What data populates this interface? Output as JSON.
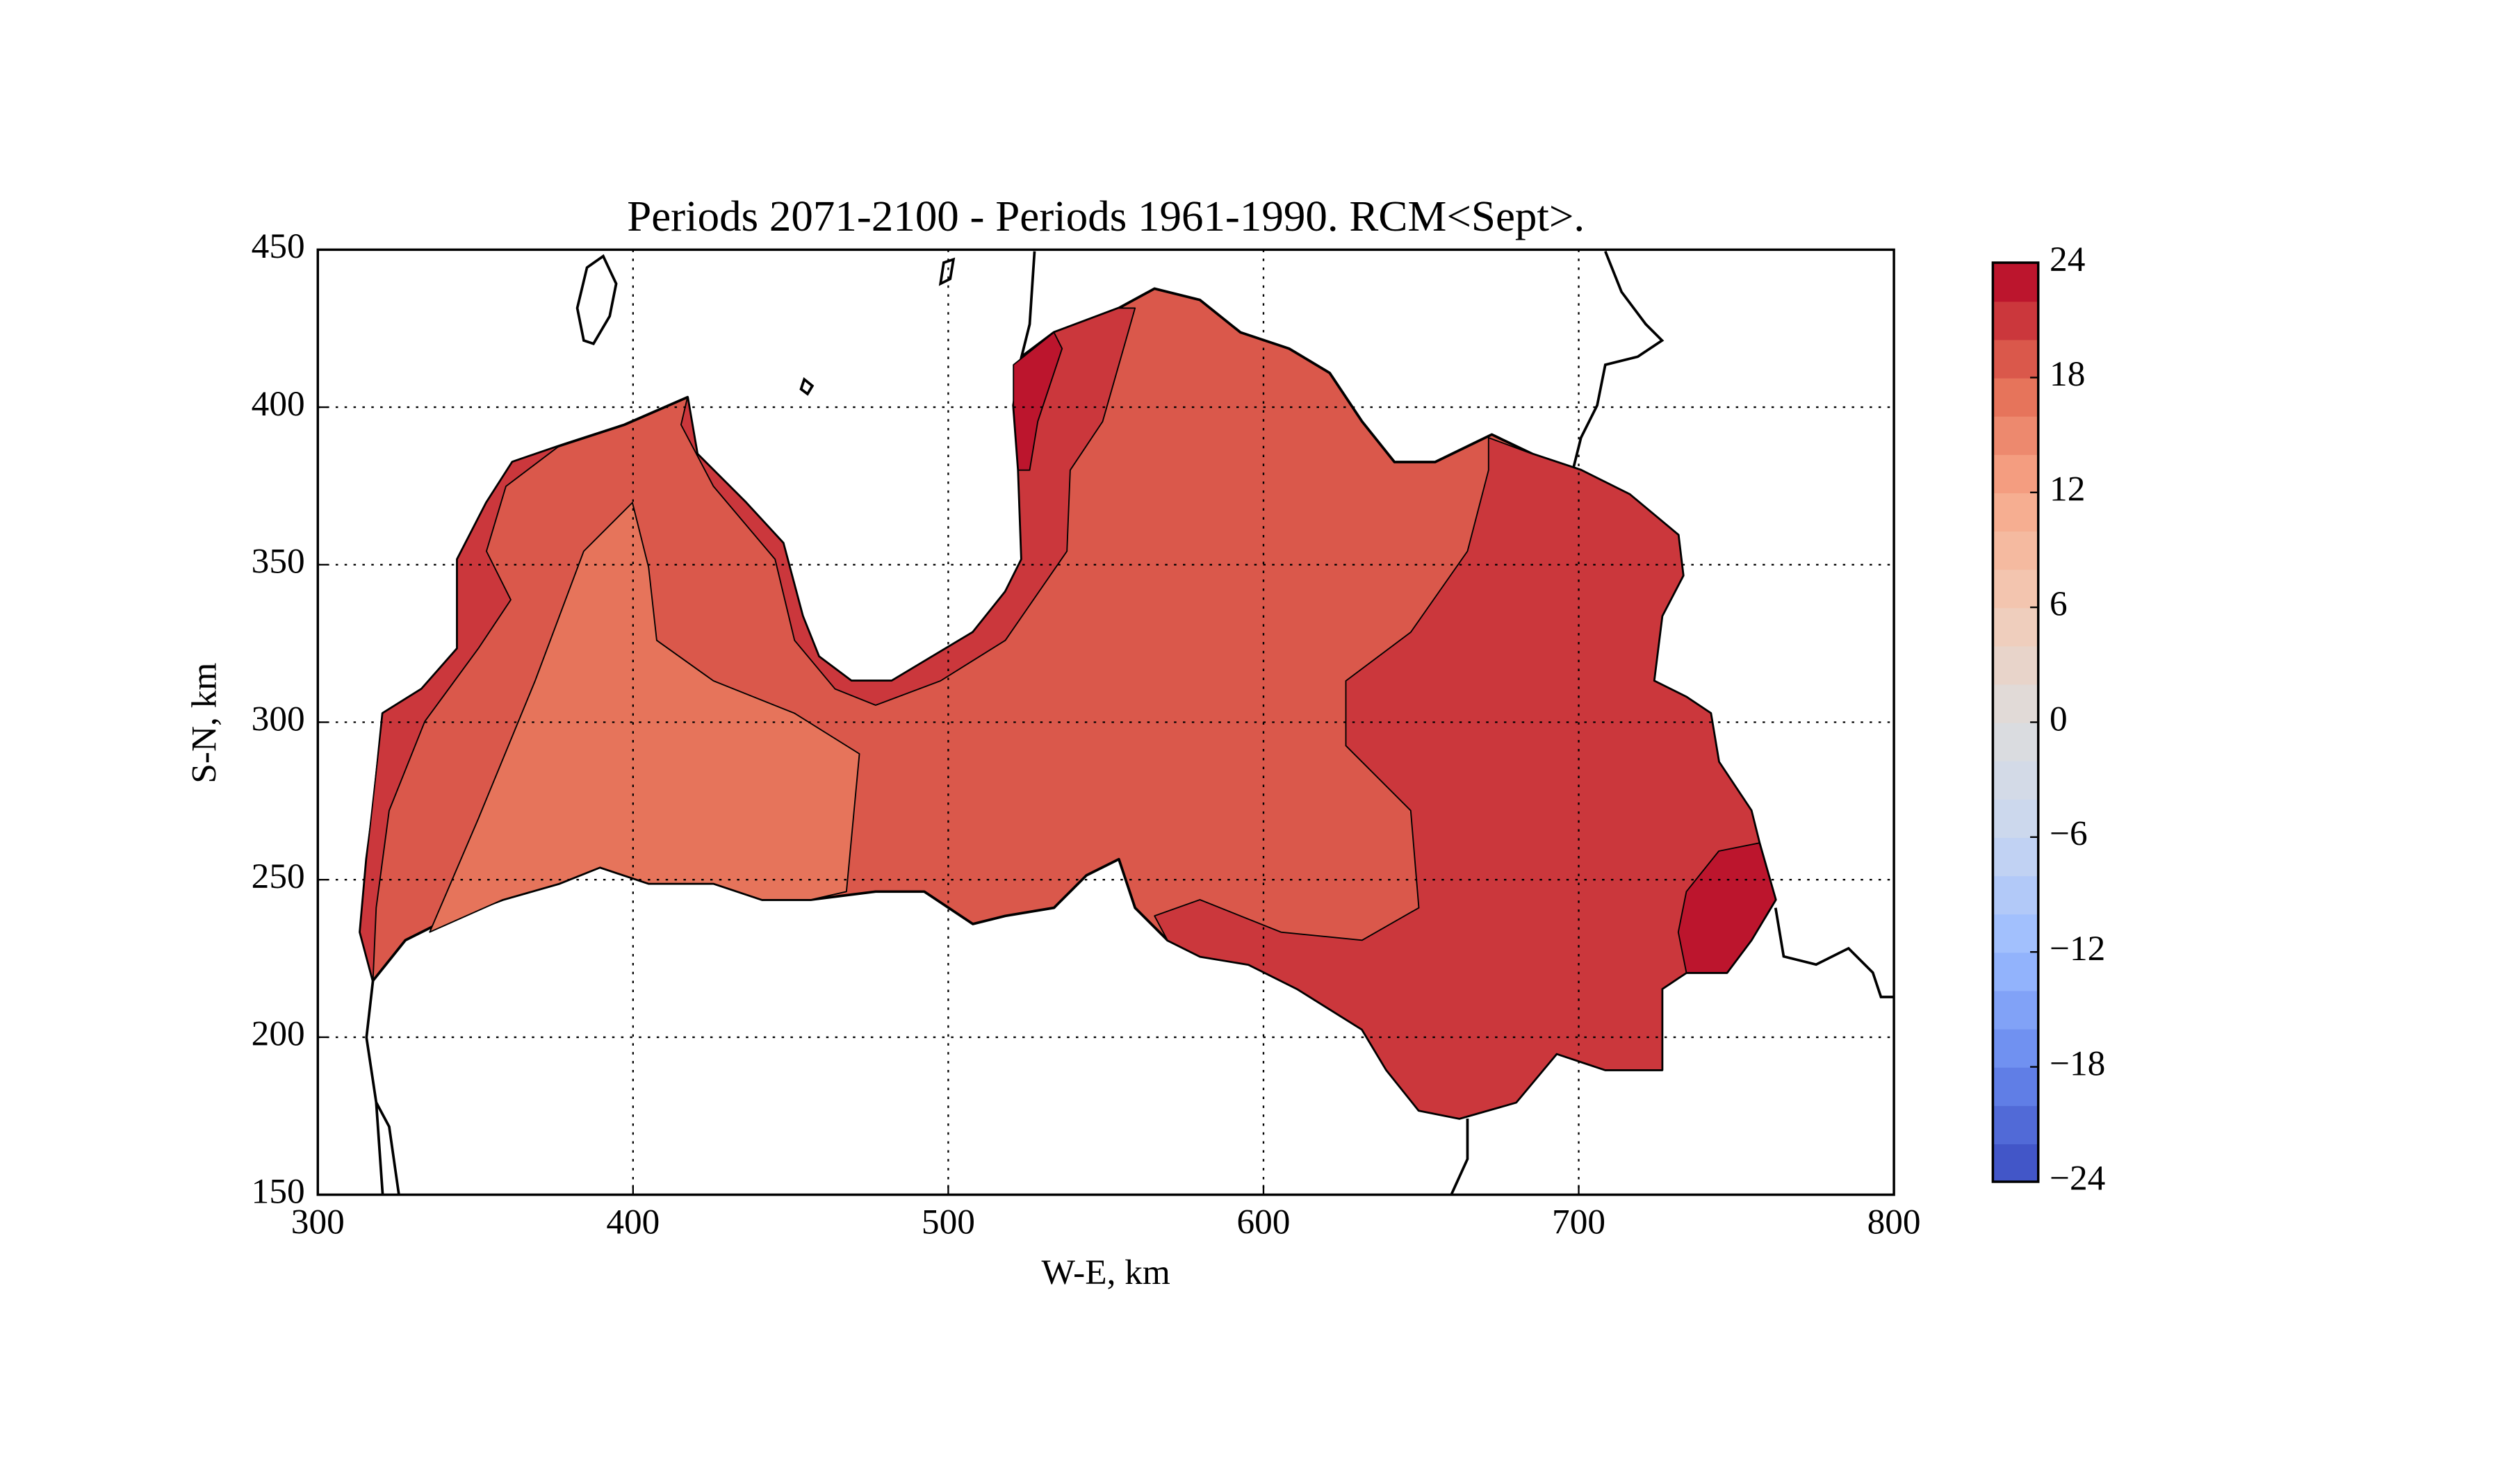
{
  "chart_data": {
    "type": "contourf",
    "title": "Periods 2071-2100 - Periods 1961-1990. RCM<Sept>.",
    "x_label": "W-E, km",
    "y_label": "S-N, km",
    "xlim": [
      300,
      800
    ],
    "ylim": [
      150,
      450
    ],
    "xticks": [
      300,
      400,
      500,
      600,
      700,
      800
    ],
    "yticks": [
      150,
      200,
      250,
      300,
      350,
      400,
      450
    ],
    "grid": true,
    "cmap": [
      "#3b4cc0",
      "#6788ee",
      "#9abbff",
      "#c9d7f0",
      "#dddddd",
      "#f2cbb7",
      "#f7a889",
      "#e26952",
      "#b40426"
    ],
    "colorbar": {
      "levels": [
        -24,
        -22,
        -20,
        -18,
        -16,
        -14,
        -12,
        -10,
        -8,
        -6,
        -4,
        -2,
        0,
        2,
        4,
        6,
        8,
        10,
        12,
        14,
        16,
        18,
        20,
        22,
        24
      ],
      "ticks": [
        {
          "value": -24,
          "label": "−24"
        },
        {
          "value": -18,
          "label": "−18"
        },
        {
          "value": -12,
          "label": "−12"
        },
        {
          "value": -6,
          "label": "−6"
        },
        0,
        6,
        12,
        18,
        24
      ]
    },
    "regions": [
      {
        "min": 18,
        "max": 20
      },
      {
        "min": 16,
        "max": 18
      },
      {
        "min": 20,
        "max": 22
      },
      {
        "min": 20,
        "max": 22
      },
      {
        "min": 20,
        "max": 22
      },
      {
        "min": 22,
        "max": 24
      },
      {
        "min": 22,
        "max": 24
      }
    ]
  }
}
